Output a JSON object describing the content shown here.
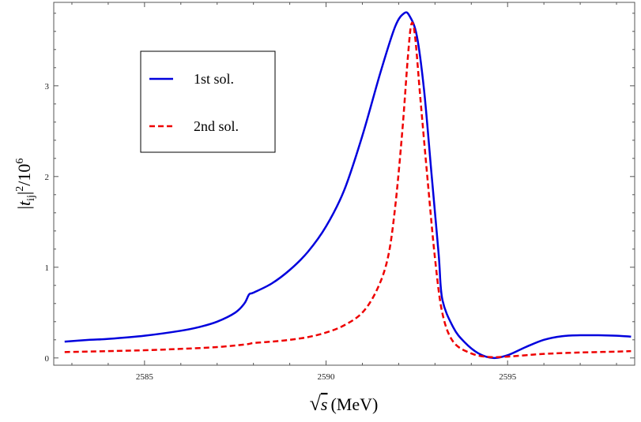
{
  "chart_data": {
    "type": "line",
    "title": "",
    "xlabel": "√s (MeV)",
    "xlabel_parts": {
      "sqrt": "√",
      "symbol": "s",
      "unit": "(MeV)"
    },
    "ylabel": "|t_ij|²/10⁶",
    "ylabel_parts": {
      "open": "|",
      "t": "t",
      "sub": "ij",
      "close": "|",
      "sup1": "2",
      "slash": "/10",
      "sup2": "6"
    },
    "xlim": [
      2582.5,
      2598.5
    ],
    "ylim": [
      -0.08,
      3.92
    ],
    "x_ticks": [
      2585,
      2590,
      2595
    ],
    "x_tick_labels": [
      "2585",
      "2590",
      "2595"
    ],
    "y_ticks": [
      0,
      1,
      2,
      3
    ],
    "y_tick_labels": [
      "0",
      "1",
      "2",
      "3"
    ],
    "grid": false,
    "legend_position": "top-left",
    "series": [
      {
        "name": "1st sol.",
        "color": "#0000dd",
        "dash": "solid",
        "points": [
          [
            2582.8,
            0.18
          ],
          [
            2583.5,
            0.2
          ],
          [
            2584.0,
            0.21
          ],
          [
            2585.0,
            0.245
          ],
          [
            2586.0,
            0.3
          ],
          [
            2586.5,
            0.34
          ],
          [
            2587.0,
            0.4
          ],
          [
            2587.5,
            0.5
          ],
          [
            2587.75,
            0.6
          ],
          [
            2587.88,
            0.7
          ],
          [
            2588.0,
            0.72
          ],
          [
            2588.5,
            0.82
          ],
          [
            2589.0,
            0.97
          ],
          [
            2589.5,
            1.17
          ],
          [
            2590.0,
            1.45
          ],
          [
            2590.5,
            1.85
          ],
          [
            2591.0,
            2.45
          ],
          [
            2591.5,
            3.15
          ],
          [
            2591.9,
            3.65
          ],
          [
            2592.15,
            3.8
          ],
          [
            2592.3,
            3.77
          ],
          [
            2592.5,
            3.55
          ],
          [
            2592.7,
            2.95
          ],
          [
            2592.9,
            2.05
          ],
          [
            2593.1,
            1.15
          ],
          [
            2593.2,
            0.65
          ],
          [
            2593.5,
            0.34
          ],
          [
            2593.8,
            0.18
          ],
          [
            2594.2,
            0.05
          ],
          [
            2594.6,
            0.0
          ],
          [
            2595.0,
            0.03
          ],
          [
            2595.5,
            0.12
          ],
          [
            2596.0,
            0.2
          ],
          [
            2596.5,
            0.24
          ],
          [
            2597.0,
            0.25
          ],
          [
            2597.5,
            0.25
          ],
          [
            2598.0,
            0.245
          ],
          [
            2598.4,
            0.235
          ]
        ]
      },
      {
        "name": "2nd sol.",
        "color": "#ee0000",
        "dash": "dashed",
        "points": [
          [
            2582.8,
            0.065
          ],
          [
            2584.0,
            0.075
          ],
          [
            2585.0,
            0.085
          ],
          [
            2586.0,
            0.1
          ],
          [
            2587.0,
            0.12
          ],
          [
            2587.8,
            0.15
          ],
          [
            2588.0,
            0.165
          ],
          [
            2588.5,
            0.18
          ],
          [
            2589.0,
            0.2
          ],
          [
            2589.5,
            0.23
          ],
          [
            2590.0,
            0.28
          ],
          [
            2590.5,
            0.36
          ],
          [
            2591.0,
            0.5
          ],
          [
            2591.4,
            0.75
          ],
          [
            2591.7,
            1.1
          ],
          [
            2591.9,
            1.65
          ],
          [
            2592.1,
            2.5
          ],
          [
            2592.25,
            3.3
          ],
          [
            2592.35,
            3.68
          ],
          [
            2592.45,
            3.55
          ],
          [
            2592.6,
            2.85
          ],
          [
            2592.8,
            1.95
          ],
          [
            2593.0,
            1.1
          ],
          [
            2593.2,
            0.5
          ],
          [
            2593.5,
            0.18
          ],
          [
            2594.0,
            0.05
          ],
          [
            2594.5,
            0.01
          ],
          [
            2595.0,
            0.015
          ],
          [
            2595.5,
            0.03
          ],
          [
            2596.0,
            0.045
          ],
          [
            2597.0,
            0.06
          ],
          [
            2598.0,
            0.07
          ],
          [
            2598.4,
            0.075
          ]
        ]
      }
    ]
  }
}
